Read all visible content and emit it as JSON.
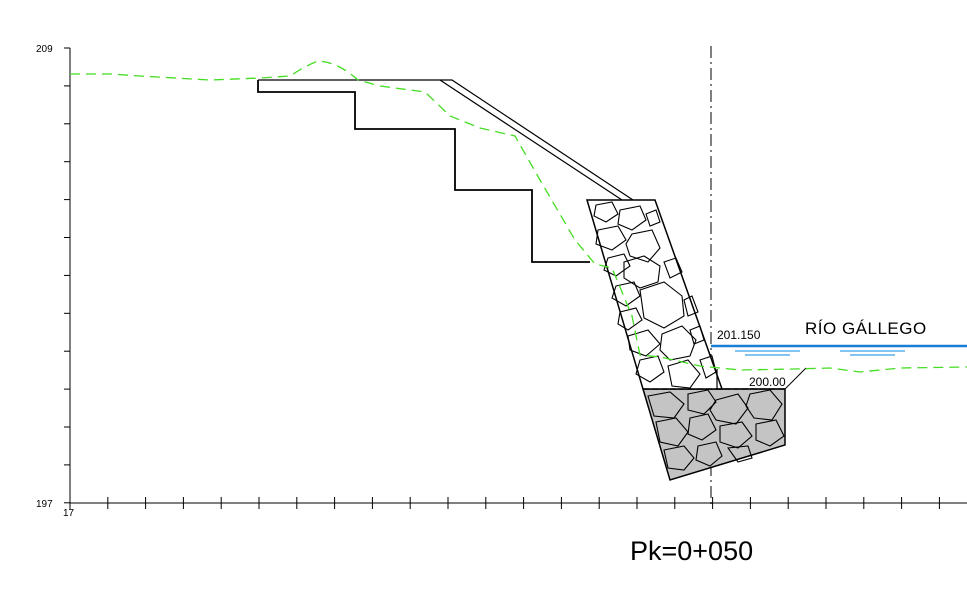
{
  "axis": {
    "y_top_label": "209",
    "y_bottom_label": "197",
    "x_origin_label": "17"
  },
  "labels": {
    "water_level": "201.150",
    "base_level": "200.00",
    "river_name": "RÍO GÁLLEGO",
    "station": "Pk=0+050"
  },
  "colors": {
    "terrain_line": "#44dd22",
    "water_line": "#1a7fd4",
    "water_ripple": "#3aa0e8",
    "foundation_fill": "#c4c4c4",
    "structure_line": "#000000"
  }
}
